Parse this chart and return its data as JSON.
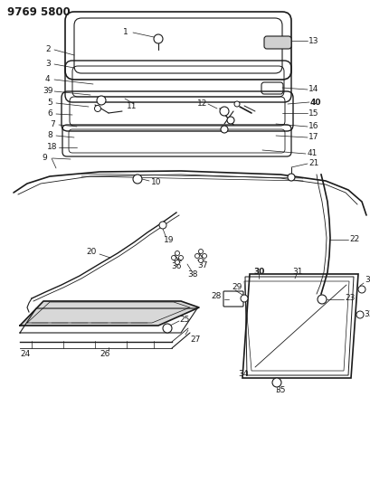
{
  "title": "9769 5800",
  "bg_color": "#ffffff",
  "line_color": "#1a1a1a",
  "figsize": [
    4.1,
    5.33
  ],
  "dpi": 100,
  "title_fontsize": 8.5,
  "label_fontsize": 6.5
}
